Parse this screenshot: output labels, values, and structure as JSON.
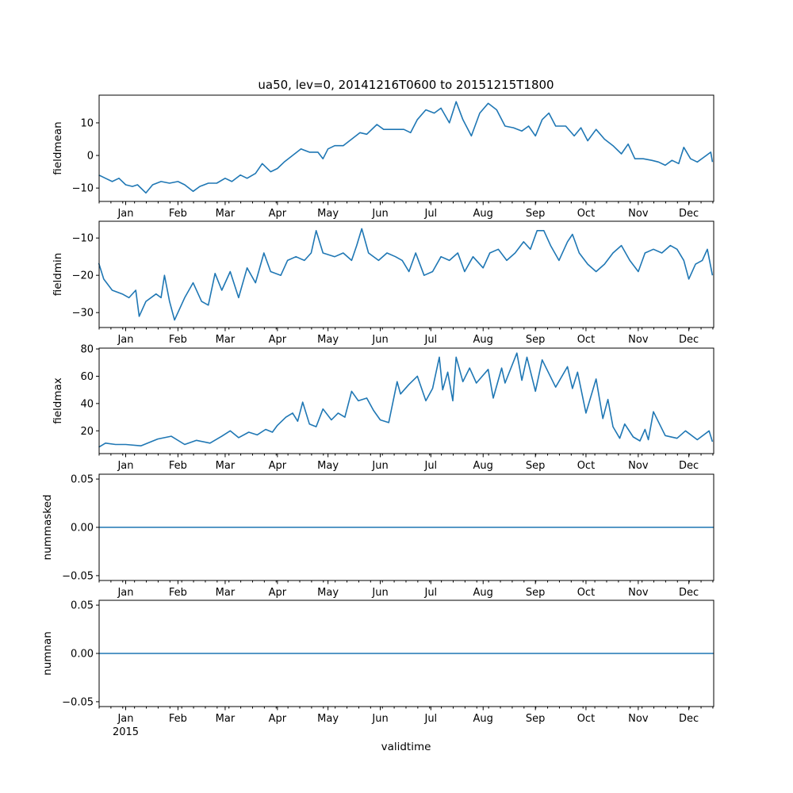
{
  "chart_data": {
    "type": "line",
    "title": "ua50, lev=0, 20141216T0600 to 20151215T1800",
    "xlabel": "validtime",
    "x_start": "2014-12-16T06:00:00Z",
    "x_end": "2015-12-15T18:00:00Z",
    "x_year_label": "2015",
    "x_ticks": [
      {
        "date": "2015-01-01",
        "label": "Jan"
      },
      {
        "date": "2015-02-01",
        "label": "Feb"
      },
      {
        "date": "2015-03-01",
        "label": "Mar"
      },
      {
        "date": "2015-04-01",
        "label": "Apr"
      },
      {
        "date": "2015-05-01",
        "label": "May"
      },
      {
        "date": "2015-06-01",
        "label": "Jun"
      },
      {
        "date": "2015-07-01",
        "label": "Jul"
      },
      {
        "date": "2015-08-01",
        "label": "Aug"
      },
      {
        "date": "2015-09-01",
        "label": "Sep"
      },
      {
        "date": "2015-10-01",
        "label": "Oct"
      },
      {
        "date": "2015-11-01",
        "label": "Nov"
      },
      {
        "date": "2015-12-01",
        "label": "Dec"
      }
    ],
    "line_color": "#1f77b4",
    "panels": [
      {
        "ylabel": "fieldmean",
        "ylim": [
          -14.1,
          18.5
        ],
        "yticks": [
          {
            "v": -10,
            "label": "−10"
          },
          {
            "v": 0,
            "label": "0"
          },
          {
            "v": 10,
            "label": "10"
          }
        ],
        "points": [
          [
            "2014-12-16",
            -6
          ],
          [
            "2014-12-20",
            -7
          ],
          [
            "2014-12-24",
            -8
          ],
          [
            "2014-12-28",
            -7
          ],
          [
            "2015-01-01",
            -9
          ],
          [
            "2015-01-05",
            -9.5
          ],
          [
            "2015-01-08",
            -9
          ],
          [
            "2015-01-13",
            -11.5
          ],
          [
            "2015-01-17",
            -9
          ],
          [
            "2015-01-22",
            -8
          ],
          [
            "2015-01-27",
            -8.5
          ],
          [
            "2015-02-01",
            -8
          ],
          [
            "2015-02-05",
            -9
          ],
          [
            "2015-02-10",
            -11
          ],
          [
            "2015-02-14",
            -9.5
          ],
          [
            "2015-02-19",
            -8.5
          ],
          [
            "2015-02-24",
            -8.5
          ],
          [
            "2015-03-01",
            -7
          ],
          [
            "2015-03-05",
            -8
          ],
          [
            "2015-03-10",
            -6
          ],
          [
            "2015-03-14",
            -7
          ],
          [
            "2015-03-19",
            -5.5
          ],
          [
            "2015-03-23",
            -2.5
          ],
          [
            "2015-03-28",
            -5
          ],
          [
            "2015-04-01",
            -4
          ],
          [
            "2015-04-05",
            -2
          ],
          [
            "2015-04-10",
            0
          ],
          [
            "2015-04-15",
            2
          ],
          [
            "2015-04-20",
            1
          ],
          [
            "2015-04-25",
            1
          ],
          [
            "2015-04-28",
            -1
          ],
          [
            "2015-05-01",
            2
          ],
          [
            "2015-05-05",
            3
          ],
          [
            "2015-05-10",
            3
          ],
          [
            "2015-05-15",
            5
          ],
          [
            "2015-05-20",
            7
          ],
          [
            "2015-05-24",
            6.5
          ],
          [
            "2015-05-30",
            9.5
          ],
          [
            "2015-06-03",
            8
          ],
          [
            "2015-06-08",
            8
          ],
          [
            "2015-06-15",
            8
          ],
          [
            "2015-06-19",
            7
          ],
          [
            "2015-06-23",
            11
          ],
          [
            "2015-06-28",
            14
          ],
          [
            "2015-07-03",
            13
          ],
          [
            "2015-07-07",
            14.5
          ],
          [
            "2015-07-12",
            10
          ],
          [
            "2015-07-16",
            16.5
          ],
          [
            "2015-07-20",
            11
          ],
          [
            "2015-07-25",
            6
          ],
          [
            "2015-07-30",
            13
          ],
          [
            "2015-08-04",
            16
          ],
          [
            "2015-08-09",
            14
          ],
          [
            "2015-08-14",
            9
          ],
          [
            "2015-08-19",
            8.5
          ],
          [
            "2015-08-24",
            7.5
          ],
          [
            "2015-08-28",
            9
          ],
          [
            "2015-09-01",
            6
          ],
          [
            "2015-09-05",
            11
          ],
          [
            "2015-09-09",
            13
          ],
          [
            "2015-09-13",
            9
          ],
          [
            "2015-09-19",
            9
          ],
          [
            "2015-09-24",
            6
          ],
          [
            "2015-09-28",
            8.5
          ],
          [
            "2015-10-02",
            4.5
          ],
          [
            "2015-10-07",
            8
          ],
          [
            "2015-10-12",
            5
          ],
          [
            "2015-10-17",
            3
          ],
          [
            "2015-10-22",
            0.5
          ],
          [
            "2015-10-26",
            3.5
          ],
          [
            "2015-10-30",
            -1
          ],
          [
            "2015-11-04",
            -1
          ],
          [
            "2015-11-09",
            -1.5
          ],
          [
            "2015-11-13",
            -2
          ],
          [
            "2015-11-17",
            -3
          ],
          [
            "2015-11-21",
            -1.5
          ],
          [
            "2015-11-25",
            -2.5
          ],
          [
            "2015-11-28",
            2.5
          ],
          [
            "2015-12-02",
            -1
          ],
          [
            "2015-12-06",
            -2
          ],
          [
            "2015-12-10",
            -0.5
          ],
          [
            "2015-12-14",
            1
          ],
          [
            "2015-12-15",
            -2
          ]
        ]
      },
      {
        "ylabel": "fieldmin",
        "ylim": [
          -34.0,
          -5.5
        ],
        "yticks": [
          {
            "v": -30,
            "label": "−30"
          },
          {
            "v": -20,
            "label": "−20"
          },
          {
            "v": -10,
            "label": "−10"
          }
        ],
        "points": [
          [
            "2014-12-16",
            -16.7
          ],
          [
            "2014-12-19",
            -21
          ],
          [
            "2014-12-24",
            -24
          ],
          [
            "2014-12-30",
            -25
          ],
          [
            "2015-01-03",
            -26
          ],
          [
            "2015-01-07",
            -24
          ],
          [
            "2015-01-09",
            -31
          ],
          [
            "2015-01-13",
            -27
          ],
          [
            "2015-01-19",
            -25
          ],
          [
            "2015-01-22",
            -26
          ],
          [
            "2015-01-24",
            -20
          ],
          [
            "2015-01-27",
            -27
          ],
          [
            "2015-01-30",
            -32
          ],
          [
            "2015-02-05",
            -26
          ],
          [
            "2015-02-10",
            -22
          ],
          [
            "2015-02-15",
            -27
          ],
          [
            "2015-02-19",
            -28
          ],
          [
            "2015-02-23",
            -19.5
          ],
          [
            "2015-02-27",
            -24
          ],
          [
            "2015-03-04",
            -19
          ],
          [
            "2015-03-09",
            -26
          ],
          [
            "2015-03-14",
            -18
          ],
          [
            "2015-03-19",
            -22
          ],
          [
            "2015-03-24",
            -14
          ],
          [
            "2015-03-28",
            -19
          ],
          [
            "2015-04-03",
            -20
          ],
          [
            "2015-04-07",
            -16
          ],
          [
            "2015-04-12",
            -15
          ],
          [
            "2015-04-17",
            -16
          ],
          [
            "2015-04-21",
            -14
          ],
          [
            "2015-04-24",
            -8
          ],
          [
            "2015-04-28",
            -14
          ],
          [
            "2015-05-05",
            -15
          ],
          [
            "2015-05-10",
            -14
          ],
          [
            "2015-05-15",
            -16
          ],
          [
            "2015-05-18",
            -12
          ],
          [
            "2015-05-21",
            -7.5
          ],
          [
            "2015-05-25",
            -14
          ],
          [
            "2015-05-31",
            -16
          ],
          [
            "2015-06-05",
            -14
          ],
          [
            "2015-06-10",
            -15
          ],
          [
            "2015-06-14",
            -16
          ],
          [
            "2015-06-18",
            -19
          ],
          [
            "2015-06-22",
            -14
          ],
          [
            "2015-06-27",
            -20
          ],
          [
            "2015-07-02",
            -19
          ],
          [
            "2015-07-07",
            -15
          ],
          [
            "2015-07-12",
            -16
          ],
          [
            "2015-07-17",
            -14
          ],
          [
            "2015-07-21",
            -19
          ],
          [
            "2015-07-26",
            -15
          ],
          [
            "2015-08-01",
            -18
          ],
          [
            "2015-08-05",
            -14
          ],
          [
            "2015-08-10",
            -13
          ],
          [
            "2015-08-15",
            -16
          ],
          [
            "2015-08-20",
            -14
          ],
          [
            "2015-08-25",
            -11
          ],
          [
            "2015-08-29",
            -13
          ],
          [
            "2015-09-02",
            -8
          ],
          [
            "2015-09-06",
            -8
          ],
          [
            "2015-09-10",
            -12
          ],
          [
            "2015-09-15",
            -16
          ],
          [
            "2015-09-20",
            -11
          ],
          [
            "2015-09-23",
            -9
          ],
          [
            "2015-09-27",
            -14
          ],
          [
            "2015-10-02",
            -17
          ],
          [
            "2015-10-07",
            -19
          ],
          [
            "2015-10-12",
            -17
          ],
          [
            "2015-10-17",
            -14
          ],
          [
            "2015-10-22",
            -12
          ],
          [
            "2015-10-27",
            -16
          ],
          [
            "2015-11-01",
            -19
          ],
          [
            "2015-11-05",
            -14
          ],
          [
            "2015-11-10",
            -13
          ],
          [
            "2015-11-15",
            -14
          ],
          [
            "2015-11-20",
            -12
          ],
          [
            "2015-11-24",
            -13
          ],
          [
            "2015-11-28",
            -16
          ],
          [
            "2015-12-01",
            -21
          ],
          [
            "2015-12-05",
            -17
          ],
          [
            "2015-12-09",
            -16
          ],
          [
            "2015-12-12",
            -13
          ],
          [
            "2015-12-15",
            -20
          ]
        ]
      },
      {
        "ylabel": "fieldmax",
        "ylim": [
          3.3,
          80.6
        ],
        "yticks": [
          {
            "v": 20,
            "label": "20"
          },
          {
            "v": 40,
            "label": "40"
          },
          {
            "v": 60,
            "label": "60"
          },
          {
            "v": 80,
            "label": "80"
          }
        ],
        "points": [
          [
            "2014-12-16",
            8
          ],
          [
            "2014-12-20",
            11
          ],
          [
            "2014-12-26",
            10
          ],
          [
            "2015-01-01",
            10
          ],
          [
            "2015-01-10",
            9
          ],
          [
            "2015-01-20",
            14
          ],
          [
            "2015-01-28",
            16
          ],
          [
            "2015-02-05",
            10
          ],
          [
            "2015-02-12",
            13
          ],
          [
            "2015-02-20",
            11
          ],
          [
            "2015-02-27",
            16
          ],
          [
            "2015-03-04",
            20
          ],
          [
            "2015-03-09",
            15
          ],
          [
            "2015-03-15",
            19
          ],
          [
            "2015-03-20",
            17
          ],
          [
            "2015-03-25",
            21
          ],
          [
            "2015-03-29",
            19
          ],
          [
            "2015-04-01",
            24
          ],
          [
            "2015-04-06",
            30
          ],
          [
            "2015-04-10",
            33
          ],
          [
            "2015-04-13",
            27
          ],
          [
            "2015-04-16",
            41
          ],
          [
            "2015-04-20",
            25
          ],
          [
            "2015-04-24",
            23
          ],
          [
            "2015-04-28",
            36
          ],
          [
            "2015-05-03",
            28
          ],
          [
            "2015-05-07",
            33
          ],
          [
            "2015-05-11",
            30
          ],
          [
            "2015-05-15",
            49
          ],
          [
            "2015-05-19",
            42
          ],
          [
            "2015-05-24",
            44
          ],
          [
            "2015-05-28",
            35
          ],
          [
            "2015-06-01",
            28
          ],
          [
            "2015-06-06",
            26
          ],
          [
            "2015-06-11",
            56
          ],
          [
            "2015-06-13",
            47
          ],
          [
            "2015-06-18",
            54
          ],
          [
            "2015-06-23",
            60
          ],
          [
            "2015-06-28",
            42
          ],
          [
            "2015-07-02",
            51
          ],
          [
            "2015-07-06",
            74
          ],
          [
            "2015-07-08",
            50
          ],
          [
            "2015-07-11",
            63
          ],
          [
            "2015-07-14",
            42
          ],
          [
            "2015-07-16",
            74
          ],
          [
            "2015-07-20",
            56
          ],
          [
            "2015-07-24",
            66
          ],
          [
            "2015-07-28",
            55
          ],
          [
            "2015-08-04",
            65
          ],
          [
            "2015-08-07",
            44
          ],
          [
            "2015-08-12",
            66
          ],
          [
            "2015-08-14",
            55
          ],
          [
            "2015-08-21",
            77
          ],
          [
            "2015-08-24",
            57
          ],
          [
            "2015-08-27",
            74
          ],
          [
            "2015-09-01",
            49
          ],
          [
            "2015-09-05",
            72
          ],
          [
            "2015-09-13",
            52
          ],
          [
            "2015-09-20",
            67
          ],
          [
            "2015-09-23",
            51
          ],
          [
            "2015-09-26",
            63
          ],
          [
            "2015-10-01",
            33
          ],
          [
            "2015-10-07",
            58
          ],
          [
            "2015-10-11",
            29
          ],
          [
            "2015-10-14",
            43
          ],
          [
            "2015-10-17",
            23
          ],
          [
            "2015-10-21",
            14.5
          ],
          [
            "2015-10-24",
            25
          ],
          [
            "2015-10-29",
            15.5
          ],
          [
            "2015-11-02",
            12.6
          ],
          [
            "2015-11-05",
            21
          ],
          [
            "2015-11-07",
            13.5
          ],
          [
            "2015-11-10",
            34
          ],
          [
            "2015-11-17",
            16.5
          ],
          [
            "2015-11-24",
            14.5
          ],
          [
            "2015-11-29",
            20
          ],
          [
            "2015-12-06",
            13.5
          ],
          [
            "2015-12-13",
            20
          ],
          [
            "2015-12-15",
            12
          ]
        ]
      },
      {
        "ylabel": "nummasked",
        "ylim": [
          -0.055,
          0.055
        ],
        "yticks": [
          {
            "v": -0.05,
            "label": "−0.05"
          },
          {
            "v": 0,
            "label": "0.00"
          },
          {
            "v": 0.05,
            "label": "0.05"
          }
        ],
        "points": [
          [
            "2014-12-16T06:00",
            0
          ],
          [
            "2015-12-15T18:00",
            0
          ]
        ]
      },
      {
        "ylabel": "numnan",
        "ylim": [
          -0.055,
          0.055
        ],
        "yticks": [
          {
            "v": -0.05,
            "label": "−0.05"
          },
          {
            "v": 0,
            "label": "0.00"
          },
          {
            "v": 0.05,
            "label": "0.05"
          }
        ],
        "points": [
          [
            "2014-12-16T06:00",
            0
          ],
          [
            "2015-12-15T18:00",
            0
          ]
        ]
      }
    ]
  }
}
